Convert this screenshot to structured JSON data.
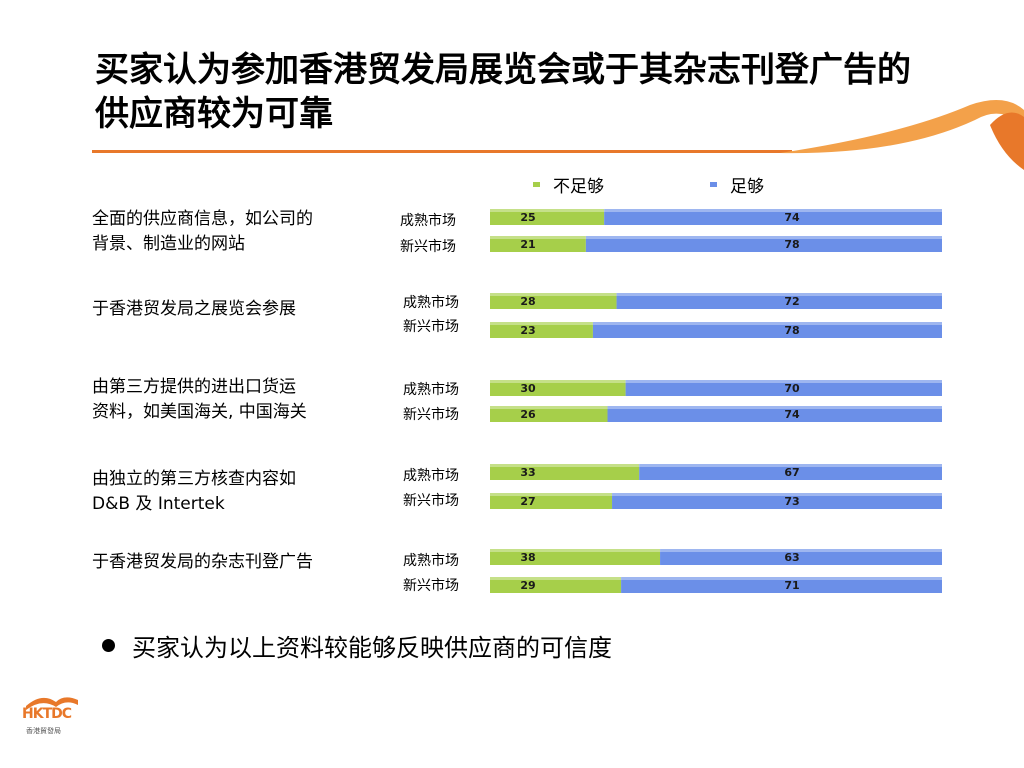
{
  "title": "买家认为参加香港贸发局展览会或于其杂志刊登广告的供应商较为可靠",
  "legend": {
    "insufficient": "不足够",
    "sufficient": "足够"
  },
  "colors": {
    "insufficient": "#a6cf4a",
    "sufficient": "#6b8fe8",
    "accent": "#e8782a"
  },
  "bullet": "买家认为以上资料较能够反映供应商的可信度",
  "logo": {
    "text": "HKTDC",
    "sub": "香港貿發局"
  },
  "chart_data": {
    "type": "bar",
    "orientation": "horizontal",
    "stacked": true,
    "series_names": [
      "不足够",
      "足够"
    ],
    "groups": [
      {
        "category_line1": "全面的供应商信息，如公司的",
        "category_line2": "背景、制造业的网站",
        "rows": [
          {
            "label": "成熟市场",
            "values": [
              25,
              74
            ]
          },
          {
            "label": "新兴市场",
            "values": [
              21,
              78
            ]
          }
        ]
      },
      {
        "category_line1": "于香港贸发局之展览会参展",
        "category_line2": "",
        "rows": [
          {
            "label": "成熟市场",
            "values": [
              28,
              72
            ]
          },
          {
            "label": "新兴市场",
            "values": [
              23,
              78
            ]
          }
        ]
      },
      {
        "category_line1": "由第三方提供的进出口货运",
        "category_line2": "资料，如美国海关, 中国海关",
        "rows": [
          {
            "label": "成熟市场",
            "values": [
              30,
              70
            ]
          },
          {
            "label": "新兴市场",
            "values": [
              26,
              74
            ]
          }
        ]
      },
      {
        "category_line1": "由独立的第三方核查内容如",
        "category_line2": "D&B 及 Intertek",
        "rows": [
          {
            "label": "成熟市场",
            "values": [
              33,
              67
            ]
          },
          {
            "label": "新兴市场",
            "values": [
              27,
              73
            ]
          }
        ]
      },
      {
        "category_line1": "于香港贸发局的杂志刊登广告",
        "category_line2": "",
        "rows": [
          {
            "label": "成熟市场",
            "values": [
              38,
              63
            ]
          },
          {
            "label": "新兴市场",
            "values": [
              29,
              71
            ]
          }
        ]
      }
    ]
  }
}
